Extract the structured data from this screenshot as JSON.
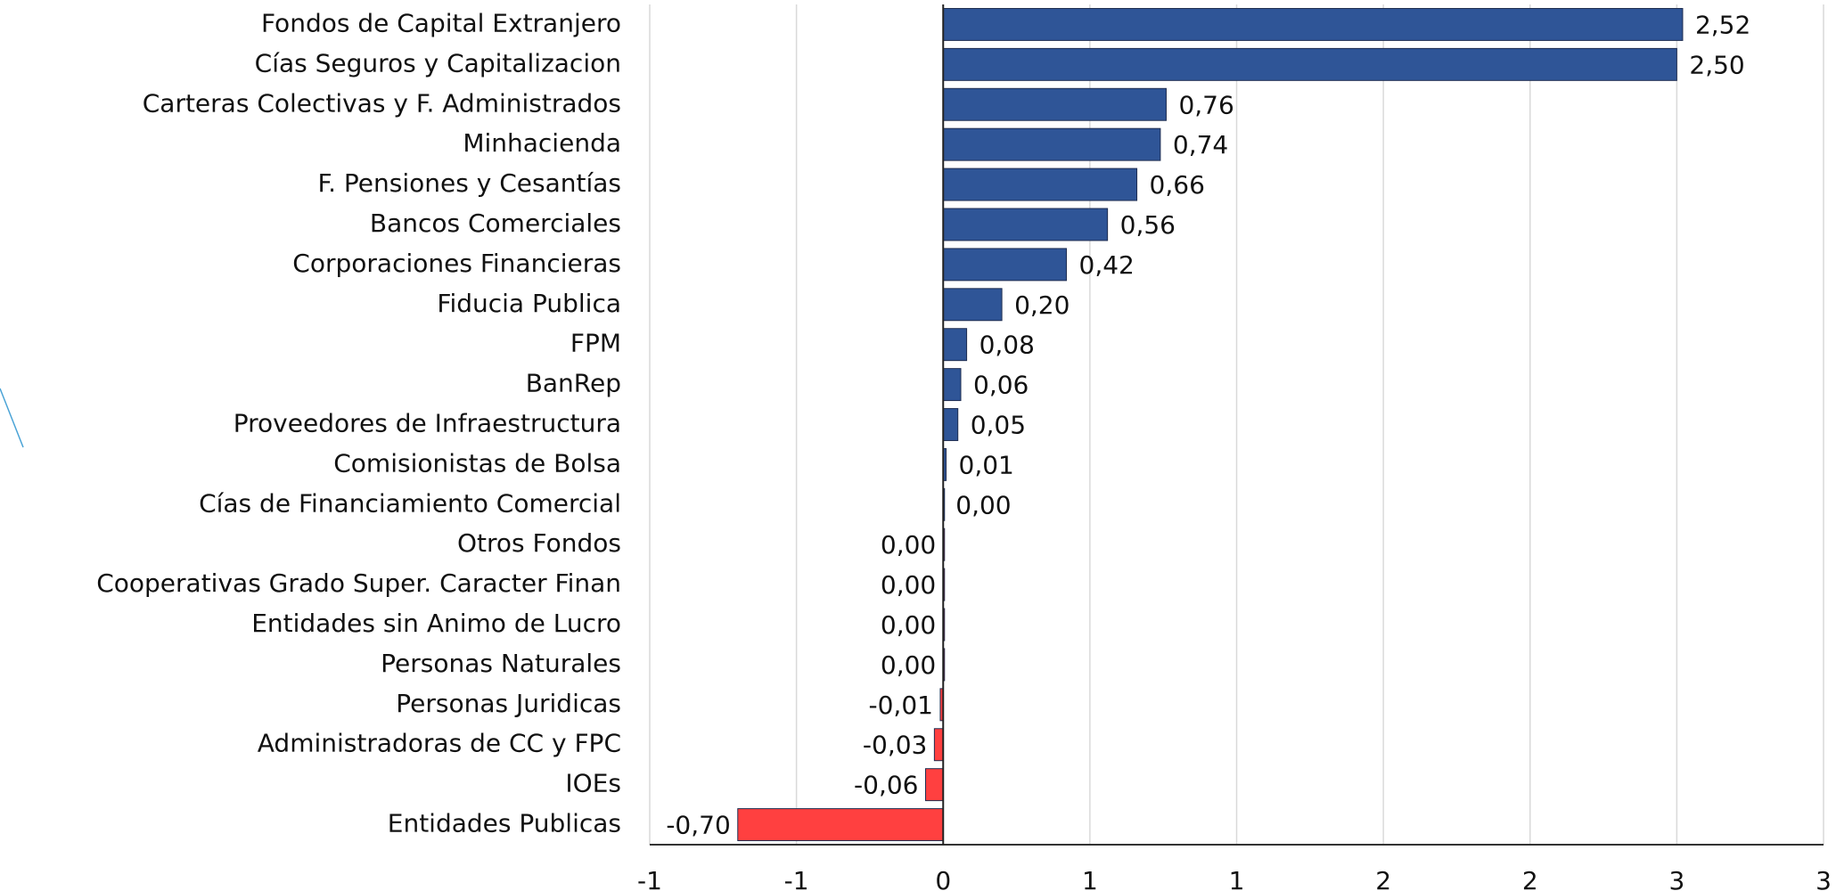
{
  "chart_data": {
    "type": "hbar",
    "categories": [
      "Fondos de Capital Extranjero",
      "Cías Seguros y Capitalizacion",
      "Carteras Colectivas y F. Administrados",
      "Minhacienda",
      "F. Pensiones y Cesantías",
      "Bancos Comerciales",
      "Corporaciones Financieras",
      "Fiducia Publica",
      "FPM",
      "BanRep",
      "Proveedores de Infraestructura",
      "Comisionistas de Bolsa",
      "Cías de Financiamiento Comercial",
      "Otros Fondos",
      "Cooperativas Grado Super. Caracter Finan",
      "Entidades sin Animo de Lucro",
      "Personas Naturales",
      "Personas Juridicas",
      "Administradoras de CC y FPC",
      "IOEs",
      "Entidades Publicas"
    ],
    "values": [
      2.52,
      2.5,
      0.76,
      0.74,
      0.66,
      0.56,
      0.42,
      0.2,
      0.08,
      0.06,
      0.05,
      0.01,
      0,
      0,
      0,
      0,
      0,
      -0.01,
      -0.03,
      -0.06,
      -0.7
    ],
    "value_labels": [
      "2,52",
      "2,50",
      "0,76",
      "0,74",
      "0,66",
      "0,56",
      "0,42",
      "0,20",
      "0,08",
      "0,06",
      "0,05",
      "0,01",
      "0,00",
      "0,00",
      "0,00",
      "0,00",
      "0,00",
      "-0,01",
      "-0,03",
      "-0,06",
      "-0,70"
    ],
    "colors": [
      "#2f5597",
      "#2f5597",
      "#2f5597",
      "#2f5597",
      "#2f5597",
      "#2f5597",
      "#2f5597",
      "#2f5597",
      "#2f5597",
      "#2f5597",
      "#2f5597",
      "#2f5597",
      "#2f5597",
      "#ff4040",
      "#ff4040",
      "#ff4040",
      "#ff4040",
      "#ff4040",
      "#ff4040",
      "#ff4040",
      "#ff4040"
    ],
    "xlim": [
      -1,
      3
    ],
    "xticks": [
      -1,
      {
        "value": -0.5,
        "label": "-1"
      },
      0,
      {
        "value": 0.5,
        "label": "1"
      },
      1,
      {
        "value": 1.5,
        "label": "2"
      },
      2,
      {
        "value": 2.5,
        "label": "3"
      },
      3
    ],
    "grid": true
  }
}
